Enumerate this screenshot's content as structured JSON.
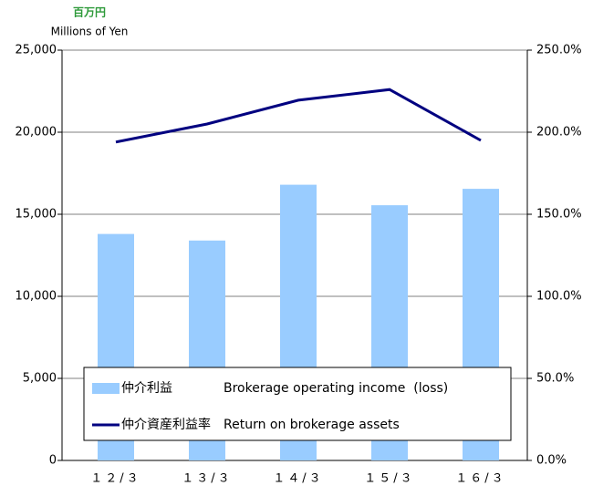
{
  "chart_data": {
    "type": "bar-line",
    "unit_label_ja": "百万円",
    "unit_label": "Millions of Yen",
    "categories": [
      "１２/３",
      "１３/３",
      "１４/３",
      "１５/３",
      "１６/３"
    ],
    "series": [
      {
        "name": "仲介利益　　　　Brokerage operating income  (loss)",
        "color": "#99ccff",
        "type": "bar",
        "values": [
          13800,
          13400,
          16800,
          15550,
          16550
        ]
      },
      {
        "name": "仲介資産利益率　Return on brokerage assets",
        "color": "#000080",
        "type": "line",
        "axis": "y2",
        "values": [
          194,
          205,
          219.5,
          226,
          195
        ]
      }
    ],
    "ylim": [
      0,
      25000
    ],
    "yticks": [
      0,
      {
        "value": 5000,
        "label": "5,000"
      },
      {
        "value": 10000,
        "label": "10,000"
      },
      {
        "value": 15000,
        "label": "15,000"
      },
      {
        "value": 20000,
        "label": "20,000"
      },
      {
        "value": 25000,
        "label": "25,000"
      }
    ],
    "y2lim": [
      0,
      250
    ],
    "y2ticks": [
      {
        "value": 0,
        "label": "0.0%"
      },
      {
        "value": 50,
        "label": "50.0%"
      },
      {
        "value": 100,
        "label": "100.0%"
      },
      {
        "value": 150,
        "label": "150.0%"
      },
      {
        "value": 200,
        "label": "200.0%"
      },
      {
        "value": 250,
        "label": "250.0%"
      }
    ],
    "grid": true,
    "legend": "lower"
  }
}
